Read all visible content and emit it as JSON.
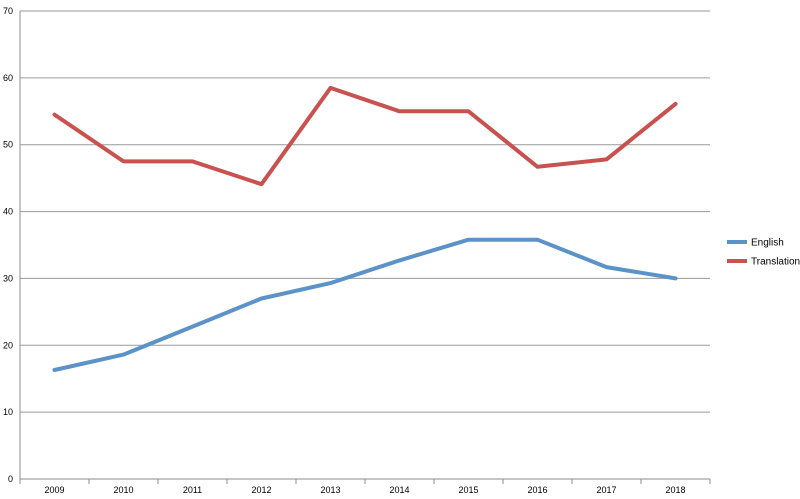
{
  "chart_data": {
    "type": "line",
    "title": "",
    "xlabel": "",
    "ylabel": "",
    "categories": [
      "2009",
      "2010",
      "2011",
      "2012",
      "2013",
      "2014",
      "2015",
      "2016",
      "2017",
      "2018"
    ],
    "ylim": [
      0,
      70
    ],
    "yticks": [
      0,
      10,
      20,
      30,
      40,
      50,
      60,
      70
    ],
    "grid": true,
    "legend_position": "right",
    "series": [
      {
        "name": "English",
        "color": "#5B93C8",
        "values": [
          16.3,
          18.6,
          22.8,
          27.0,
          29.3,
          32.7,
          35.8,
          35.8,
          31.7,
          30.0
        ]
      },
      {
        "name": "Translation",
        "color": "#C95250",
        "values": [
          54.5,
          47.5,
          47.5,
          44.1,
          58.5,
          55.0,
          55.0,
          46.7,
          47.8,
          56.1
        ]
      }
    ]
  }
}
